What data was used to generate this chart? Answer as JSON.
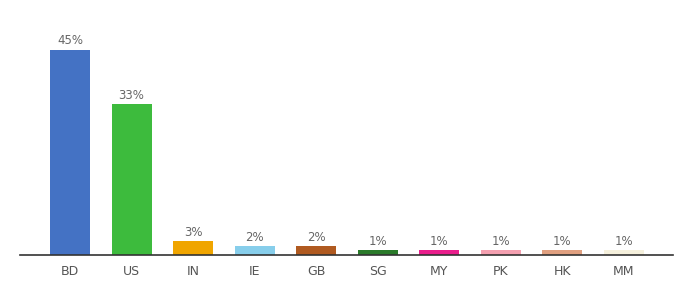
{
  "categories": [
    "BD",
    "US",
    "IN",
    "IE",
    "GB",
    "SG",
    "MY",
    "PK",
    "HK",
    "MM"
  ],
  "values": [
    45,
    33,
    3,
    2,
    2,
    1,
    1,
    1,
    1,
    1
  ],
  "labels": [
    "45%",
    "33%",
    "3%",
    "2%",
    "2%",
    "1%",
    "1%",
    "1%",
    "1%",
    "1%"
  ],
  "colors": [
    "#4472c4",
    "#3dbb3d",
    "#f0a500",
    "#87ceeb",
    "#b05a20",
    "#2a7a2a",
    "#e91e8c",
    "#f4a0b0",
    "#e0a080",
    "#f5f0dc"
  ],
  "background_color": "#ffffff",
  "ylim": [
    0,
    48
  ],
  "bar_width": 0.65,
  "label_fontsize": 8.5,
  "tick_fontsize": 9,
  "label_color": "#666666",
  "tick_color": "#555555"
}
